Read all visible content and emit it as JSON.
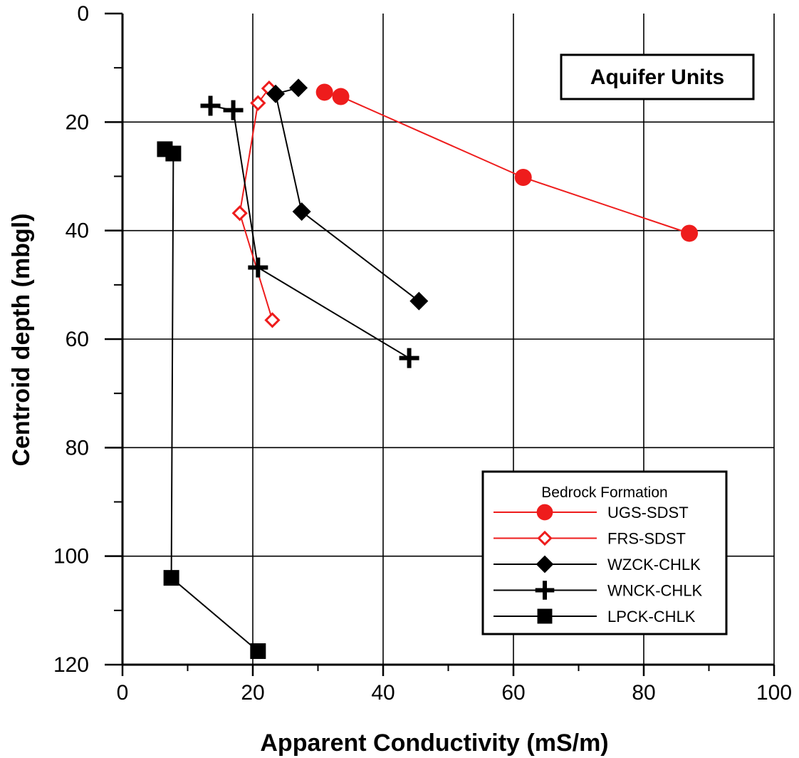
{
  "chart_data": {
    "type": "line",
    "title": "Aquifer Units",
    "xlabel": "Apparent Conductivity (mS/m)",
    "ylabel": "Centroid depth (mbgl)",
    "xlim": [
      0,
      100
    ],
    "ylim": [
      0,
      120
    ],
    "y_inverted": true,
    "grid": true,
    "x_ticks": [
      "0",
      "20",
      "40",
      "60",
      "80",
      "100"
    ],
    "y_ticks": [
      "0",
      "20",
      "40",
      "60",
      "80",
      "100",
      "120"
    ],
    "legend": {
      "title": "Bedrock Formation",
      "placement": "bottom-right"
    },
    "series": [
      {
        "name": "UGS-SDST",
        "color": "#ee1c1c",
        "marker": "circle-filled",
        "points": [
          [
            31,
            14.5
          ],
          [
            33.5,
            15.3
          ],
          [
            61.5,
            30.2
          ],
          [
            87,
            40.5
          ]
        ]
      },
      {
        "name": "FRS-SDST",
        "color": "#ee1c1c",
        "marker": "diamond-open",
        "points": [
          [
            22.5,
            13.8
          ],
          [
            20.8,
            16.5
          ],
          [
            18,
            36.8
          ],
          [
            23,
            56.5
          ]
        ]
      },
      {
        "name": "WZCK-CHLK",
        "color": "#000000",
        "marker": "diamond-filled",
        "points": [
          [
            27,
            13.7
          ],
          [
            23.5,
            14.8
          ],
          [
            27.5,
            36.5
          ],
          [
            45.5,
            53
          ]
        ]
      },
      {
        "name": "WNCK-CHLK",
        "color": "#000000",
        "marker": "plus",
        "points": [
          [
            13.5,
            17
          ],
          [
            17,
            17.8
          ],
          [
            20.8,
            46.8
          ],
          [
            44,
            63.5
          ]
        ]
      },
      {
        "name": "LPCK-CHLK",
        "color": "#000000",
        "marker": "square-filled",
        "points": [
          [
            6.5,
            25
          ],
          [
            7.8,
            25.8
          ],
          [
            7.5,
            104
          ],
          [
            20.8,
            117.5
          ]
        ]
      }
    ]
  }
}
